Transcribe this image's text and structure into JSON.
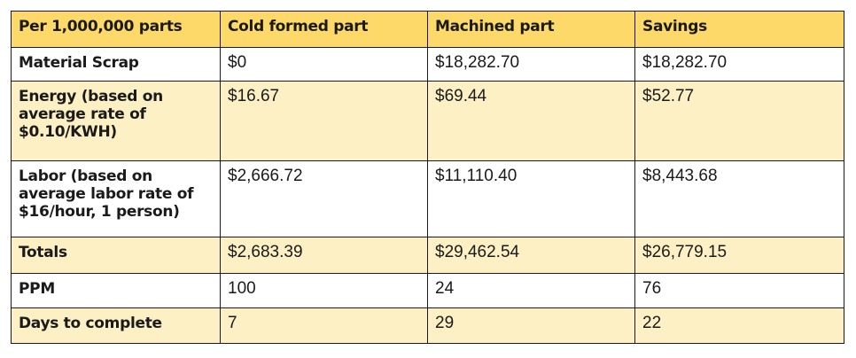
{
  "table": {
    "headers": [
      "Per 1,000,000 parts",
      "Cold formed part",
      "Machined part",
      "Savings"
    ],
    "rows": [
      {
        "label": "Material Scrap",
        "cold": "$0",
        "machined": "$18,282.70",
        "savings": "$18,282.70"
      },
      {
        "label": "Energy (based on average rate of $0.10/KWH)",
        "cold": "$16.67",
        "machined": "$69.44",
        "savings": "$52.77"
      },
      {
        "label": "Labor (based on average labor rate of $16/hour, 1 person)",
        "cold": "$2,666.72",
        "machined": "$11,110.40",
        "savings": "$8,443.68"
      },
      {
        "label": "Totals",
        "cold": "$2,683.39",
        "machined": "$29,462.54",
        "savings": "$26,779.15"
      },
      {
        "label": "PPM",
        "cold": "100",
        "machined": "24",
        "savings": "76"
      },
      {
        "label": "Days to complete",
        "cold": "7",
        "machined": "29",
        "savings": "22"
      }
    ]
  },
  "colors": {
    "header_background": "#fdd969",
    "shaded_row_background": "#fdf0c4",
    "border": "#1a1a1a"
  }
}
